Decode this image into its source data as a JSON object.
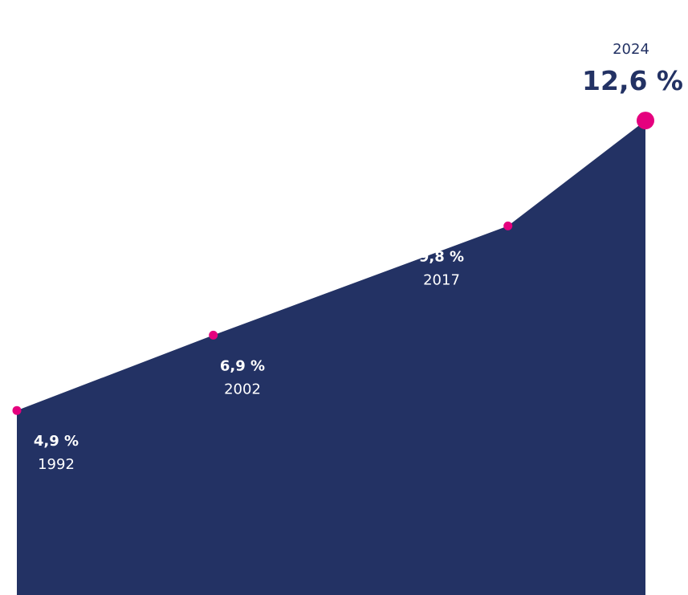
{
  "chart_data": {
    "type": "area",
    "x": [
      1992,
      2002,
      2017,
      2024
    ],
    "values": [
      4.9,
      6.9,
      9.8,
      12.6
    ],
    "value_labels": [
      "4,9 %",
      "6,9 %",
      "9,8 %",
      "12,6 %"
    ],
    "year_labels": [
      "1992",
      "2002",
      "2017",
      "2024"
    ],
    "ylim": [
      0,
      15.8
    ],
    "grid": false,
    "legend": "none",
    "colors": {
      "area": "#233264",
      "marker": "#e5007e",
      "label_on_area": "#ffffff",
      "label_dark": "#233264"
    }
  }
}
